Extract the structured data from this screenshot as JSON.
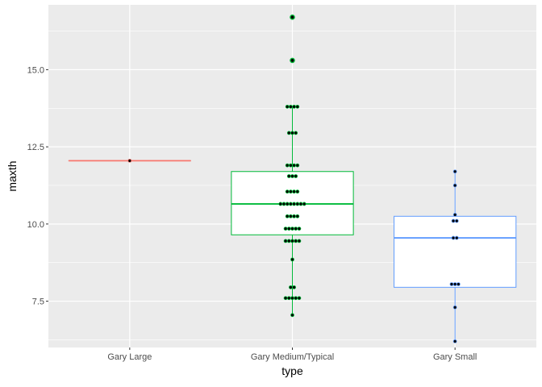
{
  "chart_data": {
    "type": "boxplot",
    "xlabel": "type",
    "ylabel": "maxth",
    "ylim": [
      6.0,
      17.1
    ],
    "yticks": [
      7.5,
      10.0,
      12.5,
      15.0
    ],
    "yticks_labels": [
      "7.5",
      "10.0",
      "12.5",
      "15.0"
    ],
    "grid": true,
    "legend": "none",
    "categories": [
      "Gary Large",
      "Gary Medium/Typical",
      "Gary Small"
    ],
    "series": [
      {
        "color": "#F8766D",
        "box": {
          "q1": 12.05,
          "median": 12.05,
          "q3": 12.05,
          "whisker_low": 12.05,
          "whisker_high": 12.05
        },
        "points": [
          12.05
        ]
      },
      {
        "color": "#00BA38",
        "box": {
          "q1": 9.65,
          "median": 10.65,
          "q3": 11.7,
          "whisker_low": 7.05,
          "whisker_high": 13.8
        },
        "points": [
          7.05,
          7.6,
          7.6,
          7.6,
          7.6,
          7.6,
          7.95,
          7.95,
          8.85,
          9.45,
          9.45,
          9.45,
          9.45,
          9.45,
          9.85,
          9.85,
          9.85,
          9.85,
          9.85,
          10.25,
          10.25,
          10.25,
          10.25,
          10.65,
          10.65,
          10.65,
          10.65,
          10.65,
          10.65,
          10.65,
          10.65,
          11.05,
          11.05,
          11.05,
          11.05,
          11.55,
          11.55,
          11.55,
          11.9,
          11.9,
          11.9,
          11.9,
          12.95,
          12.95,
          12.95,
          13.8,
          13.8,
          13.8,
          13.8
        ],
        "outliers": [
          15.3,
          16.7
        ]
      },
      {
        "color": "#619CFF",
        "box": {
          "q1": 7.95,
          "median": 9.55,
          "q3": 10.25,
          "whisker_low": 6.2,
          "whisker_high": 11.7
        },
        "points": [
          6.2,
          7.3,
          8.05,
          8.05,
          8.05,
          9.55,
          9.55,
          10.1,
          10.1,
          10.3,
          11.25,
          11.7
        ]
      }
    ]
  }
}
